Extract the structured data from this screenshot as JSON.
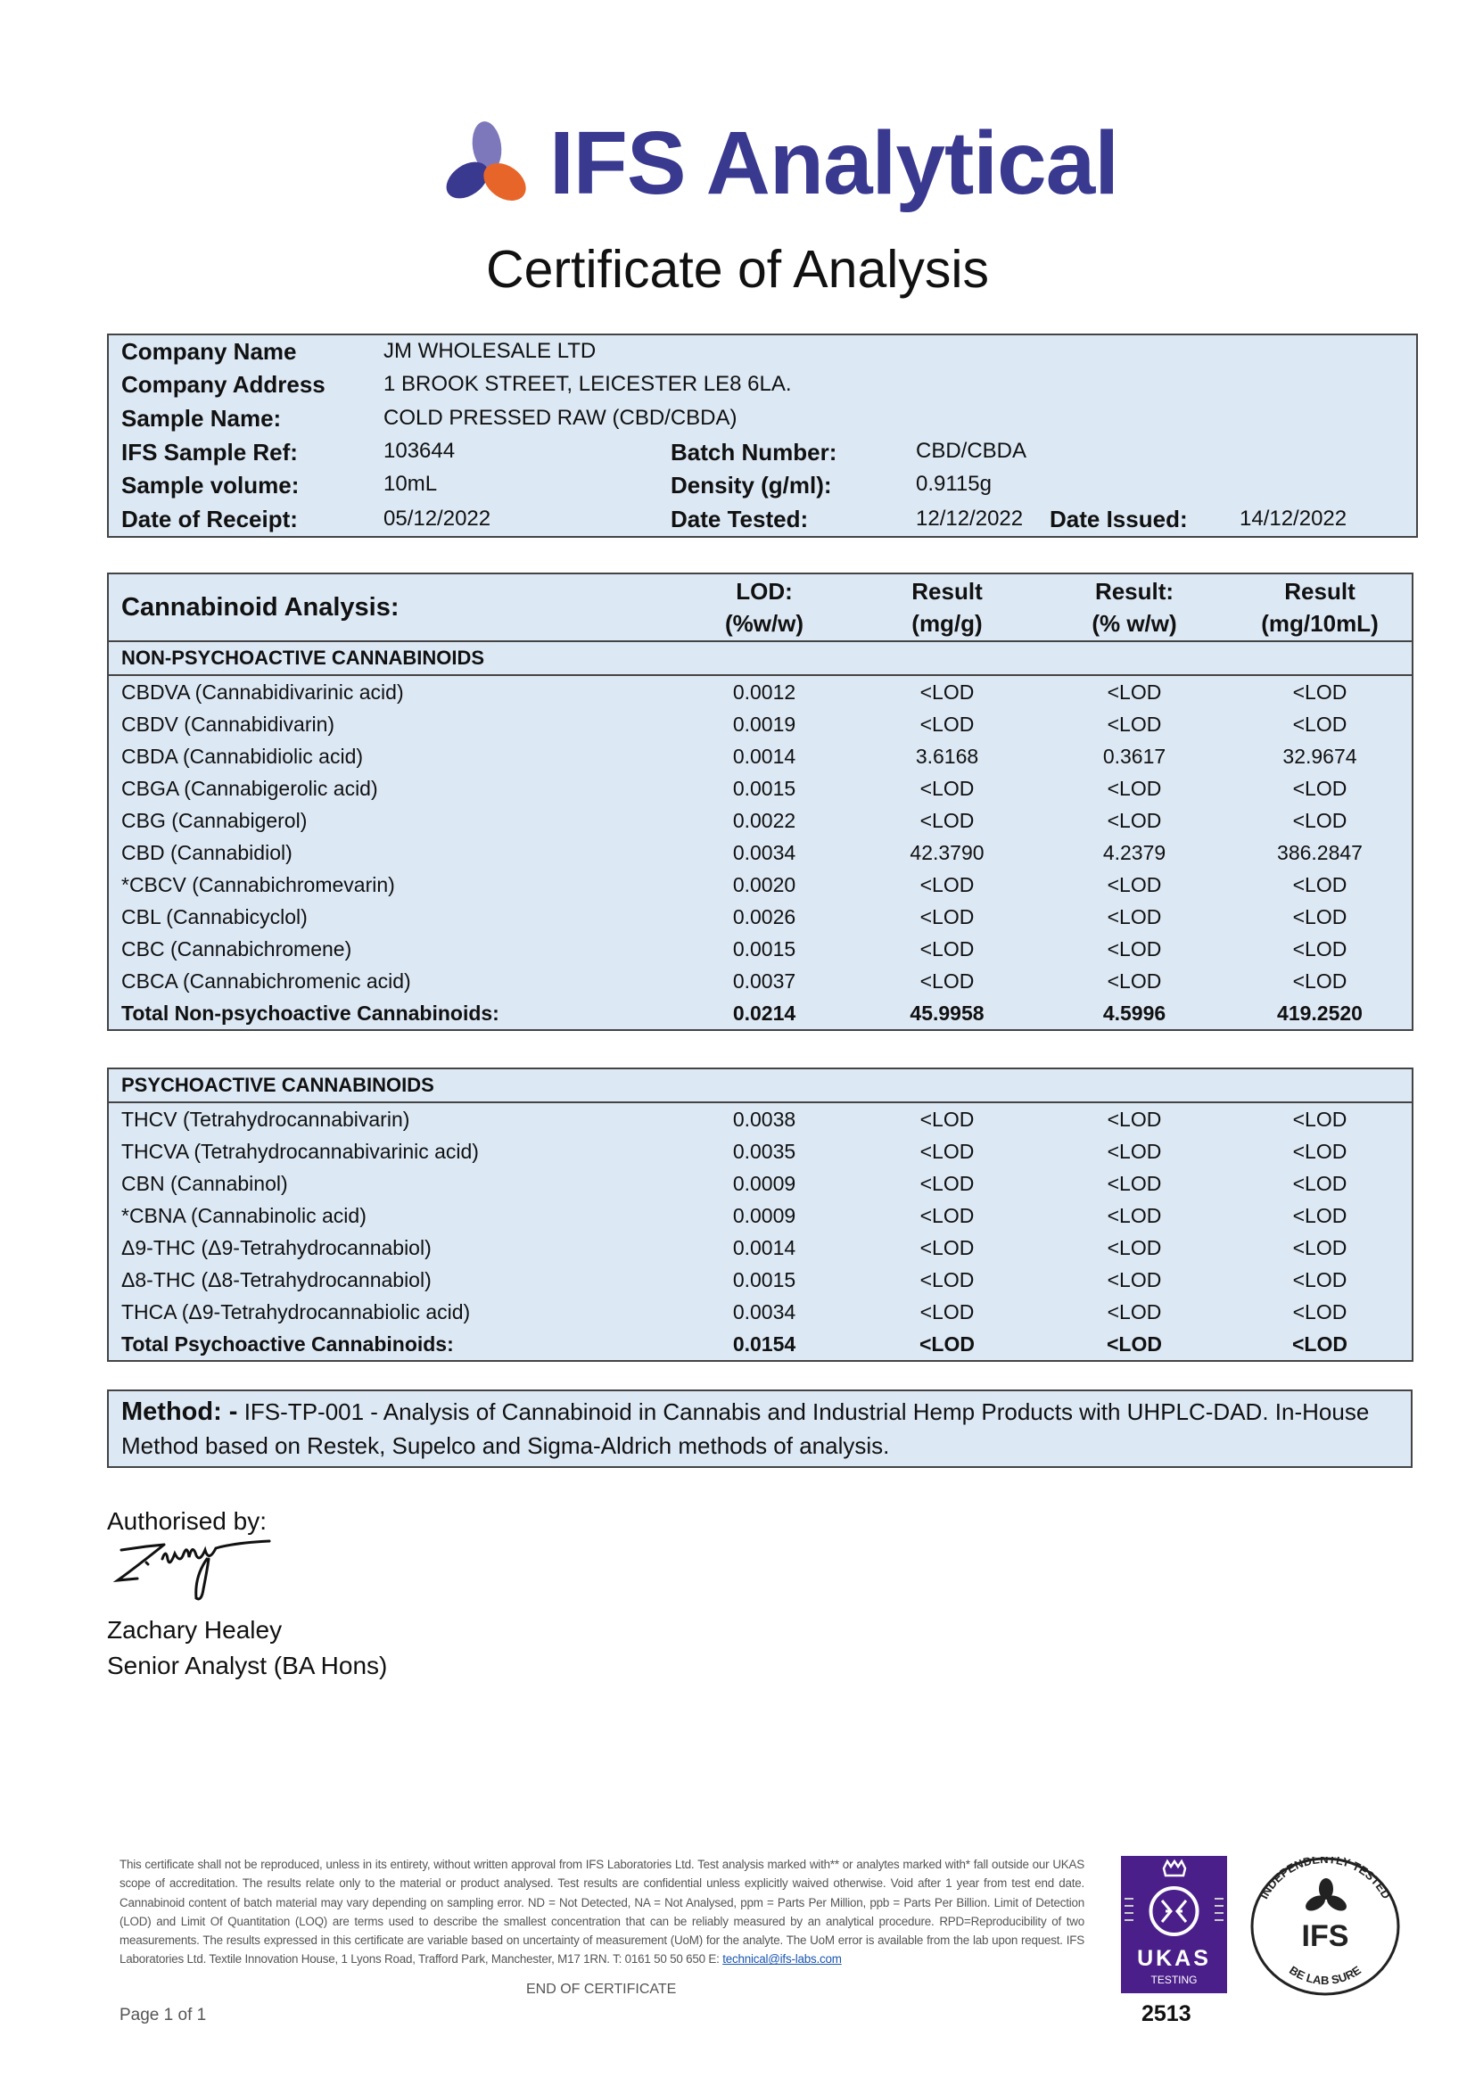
{
  "brand": {
    "name": "IFS Analytical",
    "colors": {
      "primary": "#3a3990",
      "accent": "#e8652a",
      "light": "#7d78bb"
    }
  },
  "title": "Certificate of Analysis",
  "info": {
    "company_name": {
      "label": "Company Name",
      "value": "JM WHOLESALE LTD"
    },
    "company_address": {
      "label": "Company Address",
      "value": "1 BROOK STREET, LEICESTER LE8 6LA."
    },
    "sample_name": {
      "label": "Sample Name:",
      "value": "COLD PRESSED RAW (CBD/CBDA)"
    },
    "sample_ref": {
      "label": "IFS Sample Ref:",
      "value": "103644"
    },
    "batch_number": {
      "label": "Batch Number:",
      "value": "CBD/CBDA"
    },
    "sample_volume": {
      "label": "Sample volume:",
      "value": "10mL"
    },
    "density": {
      "label": "Density (g/ml):",
      "value": "0.9115g"
    },
    "date_receipt": {
      "label": "Date of Receipt:",
      "value": "05/12/2022"
    },
    "date_tested": {
      "label": "Date Tested:",
      "value": "12/12/2022"
    },
    "date_issued": {
      "label": "Date Issued:",
      "value": "14/12/2022"
    }
  },
  "analysis": {
    "title": "Cannabinoid Analysis:",
    "columns": [
      [
        "LOD:",
        "(%w/w)"
      ],
      [
        "Result",
        "(mg/g)"
      ],
      [
        "Result:",
        "(% w/w)"
      ],
      [
        "Result",
        "(mg/10mL)"
      ]
    ],
    "non_psychoactive": {
      "heading": "NON-PSYCHOACTIVE CANNABINOIDS",
      "rows": [
        [
          "CBDVA (Cannabidivarinic acid)",
          "0.0012",
          "<LOD",
          "<LOD",
          "<LOD"
        ],
        [
          "CBDV (Cannabidivarin)",
          "0.0019",
          "<LOD",
          "<LOD",
          "<LOD"
        ],
        [
          "CBDA (Cannabidiolic acid)",
          "0.0014",
          "3.6168",
          "0.3617",
          "32.9674"
        ],
        [
          "CBGA (Cannabigerolic acid)",
          "0.0015",
          "<LOD",
          "<LOD",
          "<LOD"
        ],
        [
          "CBG (Cannabigerol)",
          "0.0022",
          "<LOD",
          "<LOD",
          "<LOD"
        ],
        [
          "CBD (Cannabidiol)",
          "0.0034",
          "42.3790",
          "4.2379",
          "386.2847"
        ],
        [
          "*CBCV (Cannabichromevarin)",
          "0.0020",
          "<LOD",
          "<LOD",
          "<LOD"
        ],
        [
          "CBL (Cannabicyclol)",
          "0.0026",
          "<LOD",
          "<LOD",
          "<LOD"
        ],
        [
          "CBC (Cannabichromene)",
          "0.0015",
          "<LOD",
          "<LOD",
          "<LOD"
        ],
        [
          "CBCA (Cannabichromenic acid)",
          "0.0037",
          "<LOD",
          "<LOD",
          "<LOD"
        ]
      ],
      "total": [
        "Total Non-psychoactive Cannabinoids:",
        "0.0214",
        "45.9958",
        "4.5996",
        "419.2520"
      ]
    },
    "psychoactive": {
      "heading": "PSYCHOACTIVE CANNABINOIDS",
      "rows": [
        [
          "THCV (Tetrahydrocannabivarin)",
          "0.0038",
          "<LOD",
          "<LOD",
          "<LOD"
        ],
        [
          "THCVA (Tetrahydrocannabivarinic acid)",
          "0.0035",
          "<LOD",
          "<LOD",
          "<LOD"
        ],
        [
          "CBN (Cannabinol)",
          "0.0009",
          "<LOD",
          "<LOD",
          "<LOD"
        ],
        [
          "*CBNA (Cannabinolic acid)",
          "0.0009",
          "<LOD",
          "<LOD",
          "<LOD"
        ],
        [
          "Δ9-THC (Δ9-Tetrahydrocannabiol)",
          "0.0014",
          "<LOD",
          "<LOD",
          "<LOD"
        ],
        [
          "Δ8-THC (Δ8-Tetrahydrocannabiol)",
          "0.0015",
          "<LOD",
          "<LOD",
          "<LOD"
        ],
        [
          "THCA (Δ9-Tetrahydrocannabiolic acid)",
          "0.0034",
          "<LOD",
          "<LOD",
          "<LOD"
        ]
      ],
      "total": [
        "Total Psychoactive Cannabinoids:",
        "0.0154",
        "<LOD",
        "<LOD",
        "<LOD"
      ]
    }
  },
  "method": {
    "label": "Method: -",
    "text": "IFS-TP-001 - Analysis of Cannabinoid in Cannabis and Industrial Hemp Products with UHPLC-DAD. In-House Method based on Restek, Supelco and Sigma-Aldrich methods of analysis."
  },
  "authorisation": {
    "label": "Authorised by:",
    "signature": "Z. Healey",
    "name": "Zachary Healey",
    "role": "Senior Analyst (BA Hons)"
  },
  "footer": {
    "disclaimer": "This certificate shall not be reproduced, unless in its entirety, without written approval from IFS Laboratories Ltd. Test analysis marked with** or analytes marked with* fall outside our UKAS scope of accreditation.  The results relate only to the material or product analysed. Test results are confidential unless explicitly waived otherwise. Void after 1 year from test end date. Cannabinoid content of batch material may vary depending on sampling error. ND = Not Detected, NA = Not Analysed, ppm = Parts Per Million, ppb = Parts Per Billion. Limit of Detection (LOD) and Limit Of Quantitation (LOQ) are terms used to describe the smallest concentration that can be reliably measured by an analytical procedure. RPD=Reproducibility of two measurements. The results expressed in this certificate are variable based on uncertainty of measurement (UoM) for the analyte. The UoM error is available from the lab upon request. IFS Laboratories Ltd. Textile Innovation House, 1 Lyons Road, Trafford Park, Manchester, M17 1RN. T: 0161 50 50 650 E: ",
    "email": "technical@ifs-labs.com",
    "end": "END OF CERTIFICATE",
    "page": "Page 1 of 1"
  },
  "badges": {
    "ukas": {
      "label": "UKAS",
      "sub": "TESTING",
      "number": "2513",
      "color": "#4b1f8a"
    },
    "seal": {
      "top": "INDEPENDENTLY TESTED",
      "center": "IFS",
      "bottom": "BE LAB SURE"
    }
  }
}
